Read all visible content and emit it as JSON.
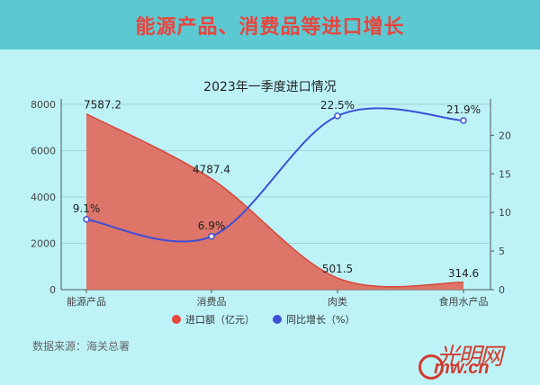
{
  "banner": {
    "title": "能源产品、消费品等进口增长"
  },
  "source": "数据来源：海关总署",
  "logo": {
    "name": "光明网",
    "site": "Gmw.cn"
  },
  "colors": {
    "bar": "#e06a5c",
    "line": "#3d4fd6",
    "banner": "#5cc8d2",
    "bg": "#bdf3f7"
  },
  "chart_data": {
    "type": "area",
    "title": "2023年一季度进口情况",
    "categories": [
      "能源产品",
      "消费品",
      "肉类",
      "食用水产品"
    ],
    "series": [
      {
        "name": "进口额（亿元）",
        "type": "area",
        "axis": "left",
        "values": [
          7587.2,
          4787.4,
          501.5,
          314.6
        ],
        "labels": [
          "7587.2",
          "4787.4",
          "501.5",
          "314.6"
        ]
      },
      {
        "name": "同比增长（%）",
        "type": "line",
        "axis": "right",
        "values": [
          9.1,
          6.9,
          22.5,
          21.9
        ],
        "labels": [
          "9.1%",
          "6.9%",
          "22.5%",
          "21.9%"
        ]
      }
    ],
    "y_left": {
      "range": [
        0,
        8000
      ],
      "ticks": [
        "0",
        "2000",
        "4000",
        "6000",
        "8000"
      ]
    },
    "y_right": {
      "range": [
        0,
        24
      ],
      "ticks": [
        "0",
        "5",
        "10",
        "15",
        "20"
      ]
    },
    "grid": true,
    "legend_position": "bottom"
  }
}
